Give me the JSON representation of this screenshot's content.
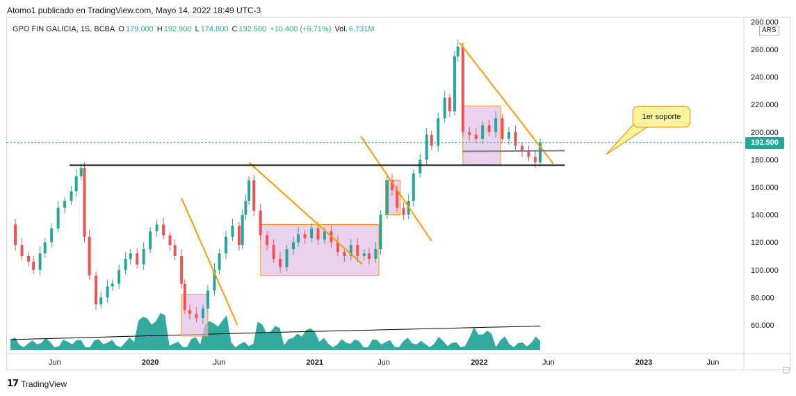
{
  "header": {
    "caption": "Atomo1 publicado en TradingView.com, Mayo 14, 2022 18:49 UTC-3"
  },
  "legend": {
    "symbol": "GPO FIN GALICIA, 1S, BCBA",
    "o_label": "O",
    "o_value": "179.000",
    "h_label": "H",
    "h_value": "192.900",
    "l_label": "L",
    "l_value": "174.800",
    "c_label": "C",
    "c_value": "192.500",
    "change": "+10.400 (+5.71%)",
    "vol_label": "Vol.",
    "vol_value": "6.731M"
  },
  "price_scale": {
    "currency": "ARS",
    "last_price": "192.500",
    "last_price_color": "#26a69a"
  },
  "annotation": {
    "callout_text": "1er soporte"
  },
  "footer": {
    "brand": "TradingView"
  },
  "colors": {
    "up": "#26a69a",
    "down": "#ef5350",
    "volume": "#26a69a",
    "trendline": "#ff9800",
    "support": "#131722",
    "box_fill": "#e1bee7",
    "box_border": "#ff9800"
  },
  "chart_data": {
    "type": "candlestick",
    "y_ticks": [
      "60.000",
      "80.000",
      "100.000",
      "120.000",
      "140.000",
      "160.000",
      "180.000",
      "200.000",
      "220.000",
      "240.000",
      "260.000",
      "280.000"
    ],
    "ylim": [
      50,
      282
    ],
    "x_ticks": [
      "Jun",
      "2020",
      "Jun",
      "2021",
      "Jun",
      "2022",
      "Jun",
      "2023",
      "Jun"
    ],
    "x_tick_times": [
      2019.42,
      2020.0,
      2020.42,
      2021.0,
      2021.42,
      2022.0,
      2022.42,
      2023.0,
      2023.42
    ],
    "xlim": [
      2019.15,
      2023.62
    ],
    "close_series": [
      [
        2019.15,
        133
      ],
      [
        2019.18,
        118
      ],
      [
        2019.22,
        110
      ],
      [
        2019.26,
        106
      ],
      [
        2019.29,
        100
      ],
      [
        2019.33,
        112
      ],
      [
        2019.36,
        120
      ],
      [
        2019.4,
        130
      ],
      [
        2019.44,
        145
      ],
      [
        2019.48,
        150
      ],
      [
        2019.52,
        157
      ],
      [
        2019.55,
        168
      ],
      [
        2019.58,
        174
      ],
      [
        2019.6,
        124
      ],
      [
        2019.63,
        96
      ],
      [
        2019.67,
        75
      ],
      [
        2019.7,
        80
      ],
      [
        2019.74,
        88
      ],
      [
        2019.77,
        90
      ],
      [
        2019.81,
        100
      ],
      [
        2019.85,
        108
      ],
      [
        2019.88,
        112
      ],
      [
        2019.92,
        104
      ],
      [
        2019.96,
        115
      ],
      [
        2020.0,
        128
      ],
      [
        2020.04,
        133
      ],
      [
        2020.08,
        125
      ],
      [
        2020.12,
        118
      ],
      [
        2020.15,
        110
      ],
      [
        2020.19,
        90
      ],
      [
        2020.21,
        71
      ],
      [
        2020.24,
        68
      ],
      [
        2020.28,
        65
      ],
      [
        2020.32,
        72
      ],
      [
        2020.35,
        85
      ],
      [
        2020.39,
        100
      ],
      [
        2020.42,
        112
      ],
      [
        2020.46,
        124
      ],
      [
        2020.5,
        132
      ],
      [
        2020.54,
        118
      ],
      [
        2020.56,
        140
      ],
      [
        2020.58,
        150
      ],
      [
        2020.6,
        165
      ],
      [
        2020.63,
        143
      ],
      [
        2020.67,
        125
      ],
      [
        2020.71,
        118
      ],
      [
        2020.75,
        108
      ],
      [
        2020.79,
        102
      ],
      [
        2020.83,
        115
      ],
      [
        2020.87,
        120
      ],
      [
        2020.9,
        126
      ],
      [
        2020.94,
        123
      ],
      [
        2020.98,
        130
      ],
      [
        2021.02,
        122
      ],
      [
        2021.06,
        128
      ],
      [
        2021.1,
        120
      ],
      [
        2021.14,
        113
      ],
      [
        2021.18,
        110
      ],
      [
        2021.22,
        118
      ],
      [
        2021.26,
        110
      ],
      [
        2021.3,
        112
      ],
      [
        2021.33,
        108
      ],
      [
        2021.37,
        115
      ],
      [
        2021.4,
        140
      ],
      [
        2021.44,
        165
      ],
      [
        2021.47,
        158
      ],
      [
        2021.5,
        145
      ],
      [
        2021.54,
        140
      ],
      [
        2021.57,
        150
      ],
      [
        2021.6,
        170
      ],
      [
        2021.64,
        180
      ],
      [
        2021.68,
        198
      ],
      [
        2021.71,
        190
      ],
      [
        2021.75,
        210
      ],
      [
        2021.79,
        225
      ],
      [
        2021.82,
        215
      ],
      [
        2021.85,
        255
      ],
      [
        2021.87,
        262
      ],
      [
        2021.9,
        200
      ],
      [
        2021.94,
        198
      ],
      [
        2021.98,
        195
      ],
      [
        2022.02,
        205
      ],
      [
        2022.06,
        200
      ],
      [
        2022.1,
        210
      ],
      [
        2022.14,
        195
      ],
      [
        2022.18,
        200
      ],
      [
        2022.22,
        190
      ],
      [
        2022.26,
        186
      ],
      [
        2022.3,
        182
      ],
      [
        2022.34,
        178
      ],
      [
        2022.37,
        192.5
      ]
    ],
    "volume_ma_label": "",
    "support_level": 176,
    "support_2_level": 186,
    "last_close": 192.5
  }
}
